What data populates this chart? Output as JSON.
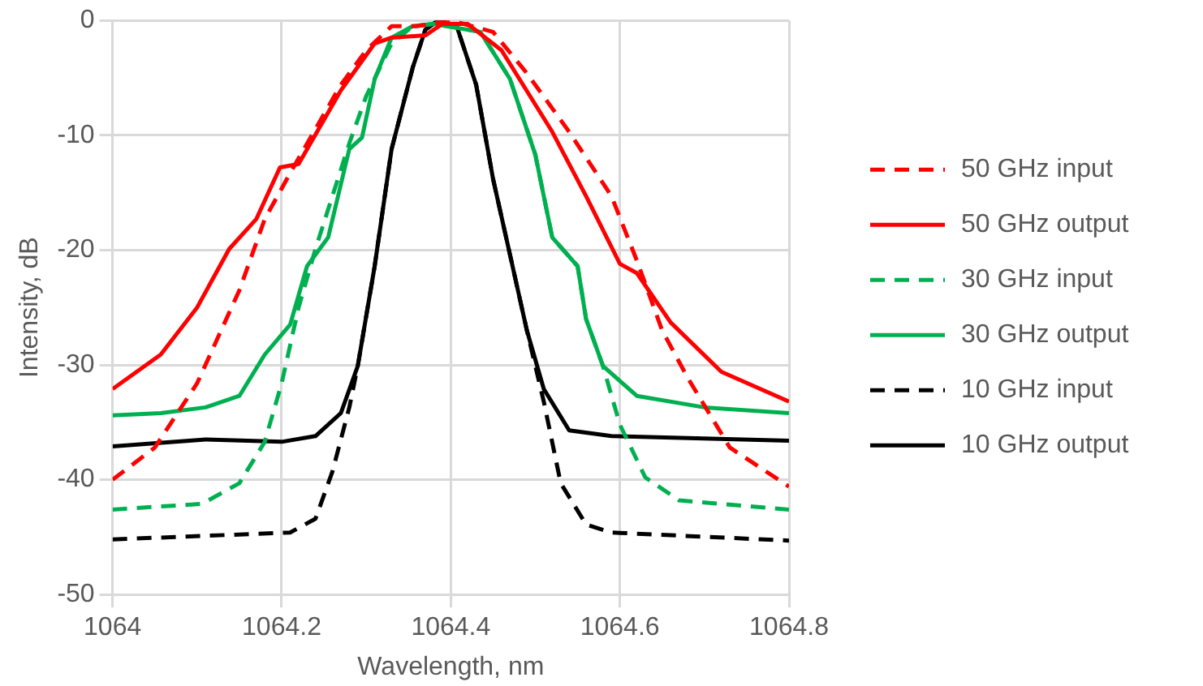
{
  "chart_data": {
    "type": "line",
    "xlabel": "Wavelength, nm",
    "ylabel": "Intensity, dB",
    "xlim": [
      1064,
      1064.8
    ],
    "xticks": [
      1064,
      1064.2,
      1064.4,
      1064.6,
      1064.8
    ],
    "ylim": [
      -50,
      0
    ],
    "yticks": [
      -50,
      -40,
      -30,
      -20,
      -10,
      0
    ],
    "grid": true,
    "legend": "right",
    "marker": "none",
    "series": [
      {
        "name": "50 GHz input",
        "color": "#ff0000",
        "line_style": "dashed",
        "x": [
          1064,
          1064.05,
          1064.1,
          1064.15,
          1064.18,
          1064.21,
          1064.27,
          1064.3,
          1064.33,
          1064.36,
          1064.4,
          1064.45,
          1064.49,
          1064.54,
          1064.59,
          1064.62,
          1064.65,
          1064.68,
          1064.73,
          1064.8
        ],
        "values": [
          -40,
          -37.2,
          -31.6,
          -23.5,
          -17.3,
          -13.3,
          -5.6,
          -2.6,
          -0.5,
          -0.5,
          0,
          -1,
          -4.6,
          -9.7,
          -15.3,
          -20.9,
          -27,
          -31.1,
          -37.2,
          -40.6
        ]
      },
      {
        "name": "50 GHz output",
        "color": "#ff0000",
        "line_style": "solid",
        "x": [
          1064,
          1064.057,
          1064.1,
          1064.138,
          1064.17,
          1064.198,
          1064.22,
          1064.27,
          1064.31,
          1064.33,
          1064.37,
          1064.39,
          1064.42,
          1064.46,
          1064.52,
          1064.56,
          1064.6,
          1064.62,
          1064.66,
          1064.72,
          1064.8
        ],
        "values": [
          -32.1,
          -29.1,
          -25,
          -19.9,
          -17.3,
          -12.8,
          -12.5,
          -6.1,
          -2,
          -1.5,
          -1.3,
          -0.3,
          -0.3,
          -2.6,
          -9.7,
          -15.3,
          -21.2,
          -22,
          -26.3,
          -30.6,
          -33.2
        ]
      },
      {
        "name": "30 GHz input",
        "color": "#00b050",
        "line_style": "dashed",
        "x": [
          1064,
          1064.106,
          1064.15,
          1064.18,
          1064.2,
          1064.22,
          1064.24,
          1064.26,
          1064.28,
          1064.3,
          1064.33,
          1064.355,
          1064.38,
          1064.435,
          1064.47,
          1064.5,
          1064.52,
          1064.55,
          1064.56,
          1064.58,
          1064.6,
          1064.63,
          1064.67,
          1064.8
        ],
        "values": [
          -42.6,
          -42.1,
          -40.3,
          -36.7,
          -31.6,
          -25,
          -19.9,
          -15.3,
          -10.7,
          -6.6,
          -2,
          -0.5,
          -0.3,
          -1,
          -5.1,
          -11.7,
          -18.9,
          -21.4,
          -26,
          -30.1,
          -35.2,
          -39.8,
          -41.8,
          -42.6
        ]
      },
      {
        "name": "30 GHz output",
        "color": "#00b050",
        "line_style": "solid",
        "x": [
          1064,
          1064.057,
          1064.11,
          1064.15,
          1064.18,
          1064.21,
          1064.23,
          1064.255,
          1064.28,
          1064.295,
          1064.31,
          1064.33,
          1064.355,
          1064.38,
          1064.435,
          1064.47,
          1064.5,
          1064.52,
          1064.55,
          1064.56,
          1064.58,
          1064.62,
          1064.7,
          1064.8
        ],
        "values": [
          -34.4,
          -34.2,
          -33.7,
          -32.7,
          -29.1,
          -26.5,
          -21.4,
          -18.9,
          -11.2,
          -10.2,
          -5.1,
          -1.5,
          -0.5,
          -0.3,
          -1,
          -5.1,
          -11.7,
          -18.9,
          -21.4,
          -26,
          -30.1,
          -32.7,
          -33.7,
          -34.2
        ]
      },
      {
        "name": "10 GHz input",
        "color": "#000000",
        "line_style": "dashed",
        "x": [
          1064,
          1064.21,
          1064.24,
          1064.26,
          1064.28,
          1064.29,
          1064.31,
          1064.33,
          1064.355,
          1064.37,
          1064.385,
          1064.407,
          1064.43,
          1064.45,
          1064.47,
          1064.49,
          1064.51,
          1064.53,
          1064.56,
          1064.59,
          1064.8
        ],
        "values": [
          -45.2,
          -44.6,
          -43.4,
          -39.3,
          -33.7,
          -30.1,
          -21.4,
          -11.2,
          -4.1,
          -0.8,
          0,
          -0.5,
          -5.6,
          -13.8,
          -20.4,
          -27,
          -33.2,
          -40.3,
          -43.9,
          -44.6,
          -45.3
        ]
      },
      {
        "name": "10 GHz output",
        "color": "#000000",
        "line_style": "solid",
        "x": [
          1064,
          1064.11,
          1064.2,
          1064.24,
          1064.27,
          1064.29,
          1064.31,
          1064.33,
          1064.355,
          1064.37,
          1064.385,
          1064.407,
          1064.43,
          1064.45,
          1064.47,
          1064.49,
          1064.51,
          1064.54,
          1064.59,
          1064.8
        ],
        "values": [
          -37.1,
          -36.5,
          -36.7,
          -36.2,
          -34.2,
          -30.1,
          -21.4,
          -11.2,
          -4.1,
          -0.8,
          0,
          -0.5,
          -5.6,
          -13.8,
          -20.4,
          -27,
          -32.1,
          -35.7,
          -36.2,
          -36.6
        ]
      }
    ]
  }
}
